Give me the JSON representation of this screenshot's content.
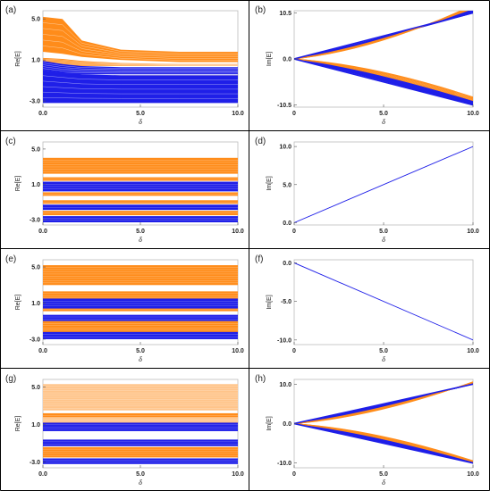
{
  "figure": {
    "colors": {
      "orange": "#ff8c1a",
      "light_orange": "#ffc48a",
      "blue": "#1f1fe8",
      "grid_line": "#000000"
    }
  },
  "chart_data": [
    {
      "panel": "(a)",
      "type": "area",
      "title": "",
      "xlabel": "δ",
      "ylabel": "Re[E]",
      "xlim": [
        0,
        10
      ],
      "ylim": [
        -3.6,
        5.8
      ],
      "xticks": [
        "0.0",
        "5.0",
        "10.0"
      ],
      "yticks": [
        "5.0",
        "1.0",
        "-3.0"
      ],
      "ytick_values": [
        5,
        1,
        -3
      ],
      "bands": [
        {
          "color": "orange",
          "y": [
            [
              5.2,
              1.8
            ],
            [
              5.0,
              1.6
            ],
            [
              2.9,
              1.3
            ],
            [
              2.0,
              1.0
            ],
            [
              1.8,
              0.8
            ],
            [
              1.8,
              0.8
            ]
          ]
        },
        {
          "color": "orange",
          "y": [
            [
              1.2,
              0.6
            ],
            [
              1.1,
              0.5
            ],
            [
              0.9,
              0.4
            ],
            [
              0.7,
              0.4
            ],
            [
              0.6,
              0.4
            ],
            [
              0.6,
              0.4
            ]
          ]
        },
        {
          "color": "blue",
          "y": [
            [
              0.9,
              -0.2
            ],
            [
              0.6,
              -0.4
            ],
            [
              0.4,
              -0.4
            ],
            [
              0.3,
              -0.4
            ],
            [
              0.3,
              -0.4
            ],
            [
              0.3,
              -0.4
            ]
          ]
        },
        {
          "color": "orange",
          "y": [
            [
              -0.5,
              -1.0
            ],
            [
              -0.5,
              -1.0
            ],
            [
              -0.5,
              -0.9
            ],
            [
              -0.5,
              -0.9
            ],
            [
              -0.5,
              -0.9
            ],
            [
              -0.5,
              -0.9
            ]
          ]
        },
        {
          "color": "blue",
          "y": [
            [
              0.0,
              -3.2
            ],
            [
              -0.2,
              -3.2
            ],
            [
              -0.4,
              -3.2
            ],
            [
              -0.5,
              -3.2
            ],
            [
              -0.5,
              -3.2
            ],
            [
              -0.5,
              -3.2
            ]
          ]
        }
      ],
      "band_x": [
        0,
        1,
        2,
        4,
        7,
        10
      ]
    },
    {
      "panel": "(b)",
      "type": "line",
      "title": "",
      "xlabel": "δ",
      "ylabel": "Im[E]",
      "xlim": [
        0,
        10
      ],
      "ylim": [
        -11,
        11
      ],
      "xticks": [
        "0",
        "5.0",
        "10.0"
      ],
      "yticks": [
        "10.5",
        "0.0",
        "-10.5"
      ],
      "ytick_values": [
        10.5,
        0,
        -10.5
      ],
      "fan": {
        "from": [
          0,
          0
        ],
        "to_upper": [
          10,
          10.5
        ],
        "to_lower": [
          10,
          -10.5
        ],
        "spread_upper": 1.8,
        "spread_lower": 1.8,
        "colors": [
          "orange",
          "blue"
        ]
      }
    },
    {
      "panel": "(c)",
      "type": "area",
      "title": "",
      "xlabel": "δ",
      "ylabel": "Re[E]",
      "xlim": [
        0,
        10
      ],
      "ylim": [
        -3.6,
        5.8
      ],
      "xticks": [
        "0.0",
        "5.0",
        "10.0"
      ],
      "yticks": [
        "5.0",
        "1.0",
        "-3.0"
      ],
      "ytick_values": [
        5,
        1,
        -3
      ],
      "flat_bands": [
        {
          "color": "orange",
          "top": 4.0,
          "bottom": 2.2
        },
        {
          "color": "orange",
          "top": 1.8,
          "bottom": 1.4
        },
        {
          "color": "blue",
          "top": 1.3,
          "bottom": 0.2
        },
        {
          "color": "orange",
          "top": 0.1,
          "bottom": -0.3
        },
        {
          "color": "orange",
          "top": -0.8,
          "bottom": -1.2
        },
        {
          "color": "blue",
          "top": -1.3,
          "bottom": -1.9
        },
        {
          "color": "orange",
          "top": -2.0,
          "bottom": -2.5
        },
        {
          "color": "blue",
          "top": -2.6,
          "bottom": -3.3
        }
      ]
    },
    {
      "panel": "(d)",
      "type": "line",
      "title": "",
      "xlabel": "δ",
      "ylabel": "Im[E]",
      "xlim": [
        0,
        10
      ],
      "ylim": [
        -0.3,
        10.6
      ],
      "xticks": [
        "0",
        "5.0",
        "10.0"
      ],
      "yticks": [
        "10.0",
        "5.0",
        "0.0"
      ],
      "ytick_values": [
        10,
        5,
        0
      ],
      "series": [
        {
          "color": "blue",
          "x": [
            0,
            10
          ],
          "y": [
            0,
            10
          ]
        }
      ]
    },
    {
      "panel": "(e)",
      "type": "area",
      "title": "",
      "xlabel": "δ",
      "ylabel": "Re[E]",
      "xlim": [
        0,
        10
      ],
      "ylim": [
        -3.6,
        5.8
      ],
      "xticks": [
        "0.0",
        "5.0",
        "10.0"
      ],
      "yticks": [
        "5.0",
        "1.0",
        "-3.0"
      ],
      "ytick_values": [
        5,
        1,
        -3
      ],
      "flat_bands": [
        {
          "color": "orange",
          "top": 5.2,
          "bottom": 3.0
        },
        {
          "color": "orange",
          "top": 2.3,
          "bottom": 0.1
        },
        {
          "color": "blue",
          "top": 1.5,
          "bottom": 0.4
        },
        {
          "color": "blue",
          "top": -0.3,
          "bottom": -1.0
        },
        {
          "color": "orange",
          "top": -1.0,
          "bottom": -2.5
        },
        {
          "color": "blue",
          "top": -2.2,
          "bottom": -3.0
        }
      ]
    },
    {
      "panel": "(f)",
      "type": "line",
      "title": "",
      "xlabel": "δ",
      "ylabel": "Im[E]",
      "xlim": [
        0,
        10
      ],
      "ylim": [
        -10.6,
        0.4
      ],
      "xticks": [
        "0",
        "5.0",
        "10.0"
      ],
      "yticks": [
        "0.0",
        "-5.0",
        "-10.0"
      ],
      "ytick_values": [
        0,
        -5,
        -10
      ],
      "series": [
        {
          "color": "blue",
          "x": [
            0,
            10
          ],
          "y": [
            0,
            -10
          ]
        }
      ]
    },
    {
      "panel": "(g)",
      "type": "area",
      "title": "",
      "xlabel": "δ",
      "ylabel": "Re[E]",
      "xlim": [
        0,
        10
      ],
      "ylim": [
        -3.6,
        5.8
      ],
      "xticks": [
        "0.0",
        "5.0",
        "10.0"
      ],
      "yticks": [
        "5.0",
        "1.0",
        "-3.0"
      ],
      "ytick_values": [
        5,
        1,
        -3
      ],
      "flat_bands": [
        {
          "color": "light_orange",
          "top": 5.3,
          "bottom": 2.5
        },
        {
          "color": "orange",
          "top": 2.2,
          "bottom": 0.9
        },
        {
          "color": "light_orange",
          "top": 1.8,
          "bottom": 1.2
        },
        {
          "color": "blue",
          "top": 1.2,
          "bottom": 0.3
        },
        {
          "color": "blue",
          "top": -0.6,
          "bottom": -1.3
        },
        {
          "color": "orange",
          "top": -1.4,
          "bottom": -2.5
        },
        {
          "color": "blue",
          "top": -2.6,
          "bottom": -3.2
        }
      ]
    },
    {
      "panel": "(h)",
      "type": "line",
      "title": "",
      "xlabel": "δ",
      "ylabel": "Im[E]",
      "xlim": [
        0,
        10
      ],
      "ylim": [
        -11.2,
        11.2
      ],
      "xticks": [
        "0",
        "5.0",
        "10.0"
      ],
      "yticks": [
        "10.0",
        "0.0",
        "-10.0"
      ],
      "ytick_values": [
        10,
        0,
        -10
      ],
      "fan": {
        "from": [
          0,
          0
        ],
        "to_upper": [
          10,
          10
        ],
        "to_lower": [
          10,
          -10
        ],
        "spread_upper": 0.6,
        "spread_lower": 0.6,
        "colors": [
          "orange",
          "blue"
        ]
      }
    }
  ]
}
